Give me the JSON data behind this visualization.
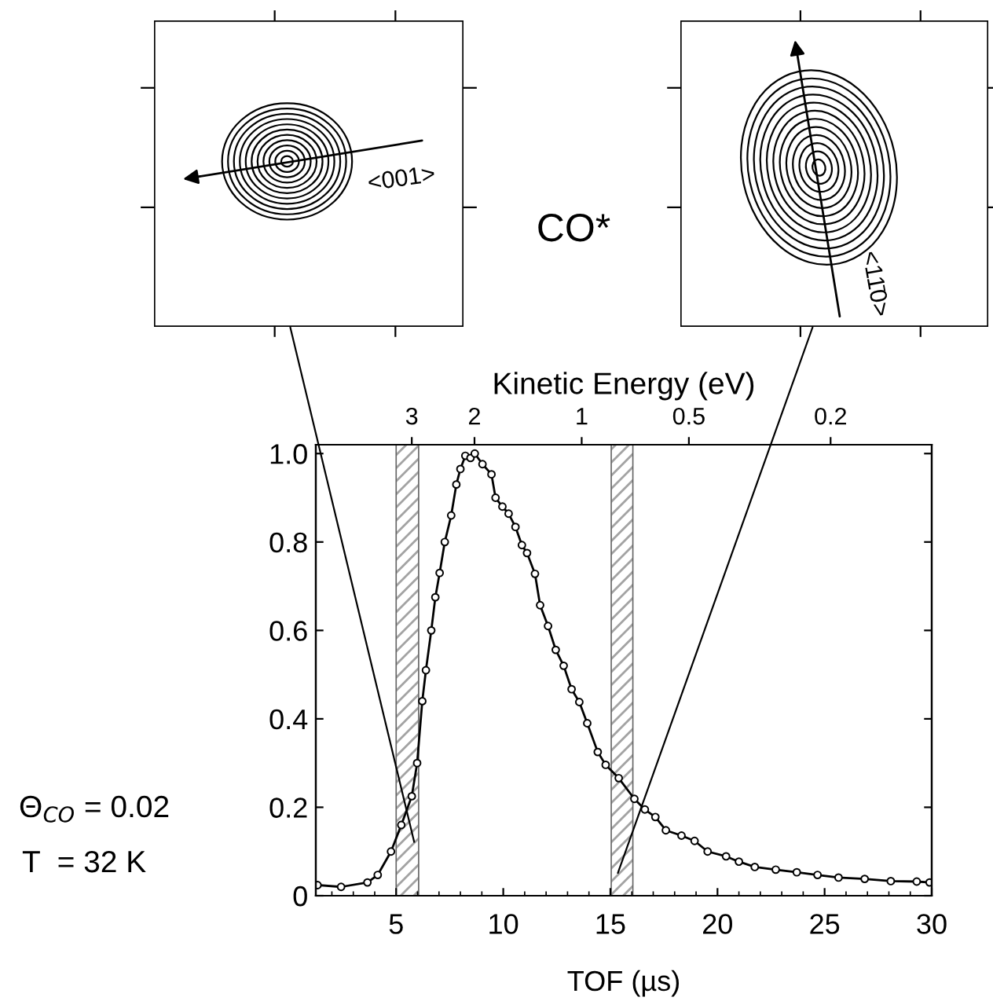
{
  "chart_data": {
    "type": "line",
    "xlabel": "TOF (µs)",
    "x2label": "Kinetic Energy (eV)",
    "x": [
      1.33,
      2.43,
      3.66,
      4.14,
      4.76,
      5.24,
      5.73,
      5.98,
      6.22,
      6.39,
      6.64,
      6.83,
      7.03,
      7.27,
      7.57,
      7.81,
      8.0,
      8.23,
      8.47,
      8.67,
      9.03,
      9.45,
      9.64,
      9.96,
      10.25,
      10.57,
      10.87,
      11.11,
      11.48,
      11.72,
      12.09,
      12.45,
      12.82,
      13.19,
      13.55,
      13.92,
      14.41,
      14.78,
      15.39,
      16.12,
      16.61,
      17.1,
      17.59,
      18.32,
      18.93,
      19.54,
      20.4,
      21.0,
      21.74,
      22.72,
      23.7,
      24.67,
      25.65,
      26.87,
      28.09,
      29.3,
      29.9
    ],
    "series": [
      {
        "color": "#000000",
        "values": [
          0.024,
          0.02,
          0.03,
          0.047,
          0.1,
          0.16,
          0.225,
          0.3,
          0.44,
          0.51,
          0.6,
          0.675,
          0.73,
          0.8,
          0.86,
          0.93,
          0.965,
          0.995,
          0.99,
          1.0,
          0.976,
          0.953,
          0.9,
          0.88,
          0.864,
          0.834,
          0.793,
          0.775,
          0.728,
          0.657,
          0.61,
          0.556,
          0.52,
          0.467,
          0.438,
          0.39,
          0.325,
          0.296,
          0.266,
          0.219,
          0.195,
          0.178,
          0.148,
          0.136,
          0.124,
          0.1,
          0.089,
          0.077,
          0.065,
          0.059,
          0.053,
          0.047,
          0.041,
          0.038,
          0.033,
          0.032,
          0.03
        ]
      }
    ],
    "xlim": [
      1.25,
      30
    ],
    "xticks": [
      5,
      10,
      15,
      20,
      25,
      30
    ],
    "ylim": [
      0,
      1.02
    ],
    "yticks": [
      {
        "value": 0,
        "label": "0"
      },
      0.2,
      0.4,
      0.6,
      0.8,
      {
        "value": 1.0,
        "label": "1.0"
      }
    ],
    "x2lim": [
      5.58,
      0.104
    ],
    "x2ticks": [
      3,
      2,
      1,
      0.5,
      0.2
    ],
    "log": "x2",
    "bands": [
      {
        "axis": "x",
        "from": 5,
        "to": 6.05,
        "color": "#000000"
      },
      {
        "axis": "x",
        "from": 15.04,
        "to": 16.05,
        "color": "#000000"
      }
    ],
    "marker": "circle",
    "line_style": "solid",
    "grid": false,
    "legend": false,
    "annotations": [
      "<001>",
      "<11̄0>",
      "CO*",
      "Θ$_{CO}$ = 0.02",
      "T  = 32 K"
    ]
  }
}
